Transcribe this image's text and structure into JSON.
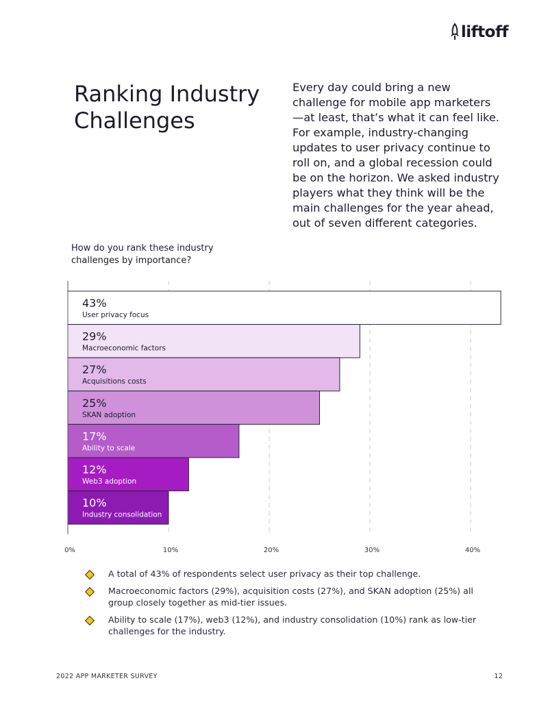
{
  "brand": {
    "name": "liftoff"
  },
  "heading": {
    "title": "Ranking Industry Challenges"
  },
  "intro": {
    "text": "Every day could bring a new challenge for mobile app marketers—at least, that’s what it can feel like. For example, industry-changing updates to user privacy continue to roll on, and a global recession could be on the horizon. We asked industry players what they think will be the main challenges for the year ahead, out of seven different categories."
  },
  "chart_data": {
    "type": "bar",
    "orientation": "horizontal",
    "title": "How do you rank these industry challenges by importance?",
    "categories": [
      "User privacy focus",
      "Macroeconomic factors",
      "Acquisitions costs",
      "SKAN adoption",
      "Ability to scale",
      "Web3 adoption",
      "Industry consolidation"
    ],
    "values": [
      43,
      29,
      27,
      25,
      17,
      12,
      10
    ],
    "value_labels": [
      "43%",
      "29%",
      "27%",
      "25%",
      "17%",
      "12%",
      "10%"
    ],
    "bar_colors": [
      "#ffffff",
      "#f3e3f6",
      "#e2b9e8",
      "#cf92da",
      "#b55bca",
      "#a51dc2",
      "#8d1ab3"
    ],
    "xlim": [
      0,
      43
    ],
    "x_ticks": [
      0,
      10,
      20,
      30,
      40
    ],
    "x_tick_labels": [
      "0%",
      "10%",
      "20%",
      "30%",
      "40%"
    ],
    "grid": true,
    "xlabel": "",
    "ylabel": ""
  },
  "findings": [
    "A total of 43% of respondents select user privacy as their top challenge.",
    "Macroeconomic factors (29%), acquisition costs (27%), and SKAN adoption (25%) all group closely together as mid-tier issues.",
    "Ability to scale (17%), web3 (12%), and industry consolidation (10%) rank as low-tier challenges for the industry."
  ],
  "footer": {
    "survey_label": "2022 APP MARKETER SURVEY",
    "page_number": "12"
  }
}
